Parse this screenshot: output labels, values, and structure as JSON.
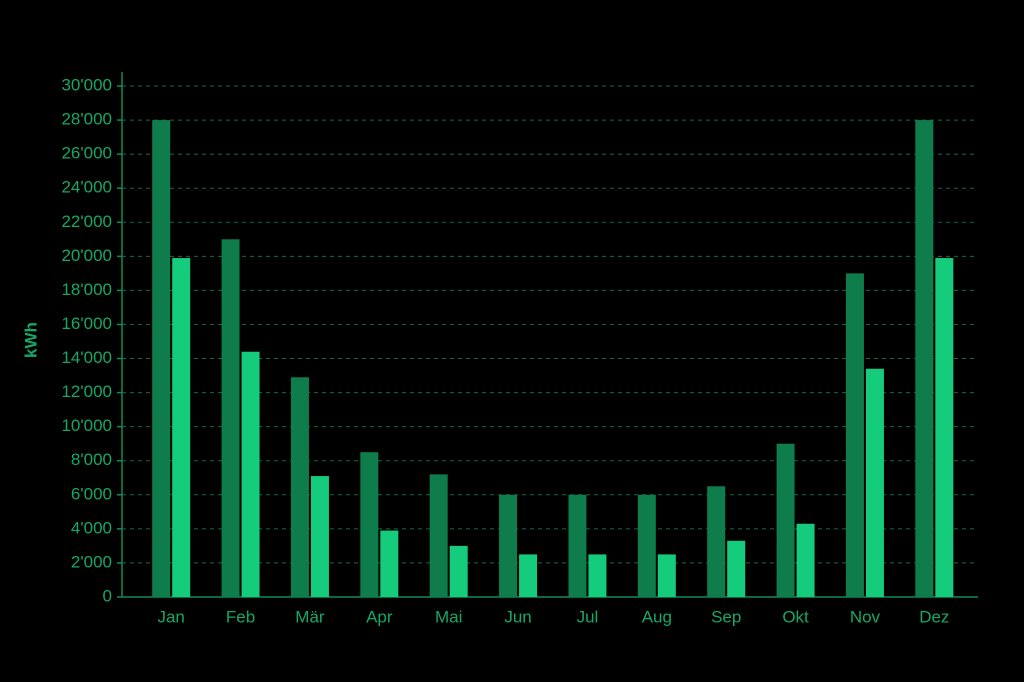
{
  "chart_data": {
    "type": "bar",
    "y_label": "kWh",
    "categories": [
      "Jan",
      "Feb",
      "Mär",
      "Apr",
      "Mai",
      "Jun",
      "Jul",
      "Aug",
      "Sep",
      "Okt",
      "Nov",
      "Dez"
    ],
    "series": [
      {
        "color": "#0e7d4b",
        "values": [
          28000,
          21000,
          12900,
          8500,
          7200,
          6000,
          6000,
          6000,
          6500,
          9000,
          19000,
          28000
        ]
      },
      {
        "color": "#14cc7c",
        "values": [
          19900,
          14400,
          7100,
          3900,
          3000,
          2500,
          2500,
          2500,
          3300,
          4300,
          13400,
          19900
        ]
      }
    ],
    "ylim": [
      0,
      30000
    ],
    "yticks": [
      0,
      {
        "value": 2000,
        "label": "2'000"
      },
      {
        "value": 4000,
        "label": "4'000"
      },
      {
        "value": 6000,
        "label": "6'000"
      },
      {
        "value": 8000,
        "label": "8'000"
      },
      {
        "value": 10000,
        "label": "10'000"
      },
      {
        "value": 12000,
        "label": "12'000"
      },
      {
        "value": 14000,
        "label": "14'000"
      },
      {
        "value": 16000,
        "label": "16'000"
      },
      {
        "value": 18000,
        "label": "18'000"
      },
      {
        "value": 20000,
        "label": "20'000"
      },
      {
        "value": 22000,
        "label": "22'000"
      },
      {
        "value": 24000,
        "label": "24'000"
      },
      {
        "value": 26000,
        "label": "26'000"
      },
      {
        "value": 28000,
        "label": "28'000"
      },
      {
        "value": 30000,
        "label": "30'000"
      }
    ],
    "grid": true
  }
}
